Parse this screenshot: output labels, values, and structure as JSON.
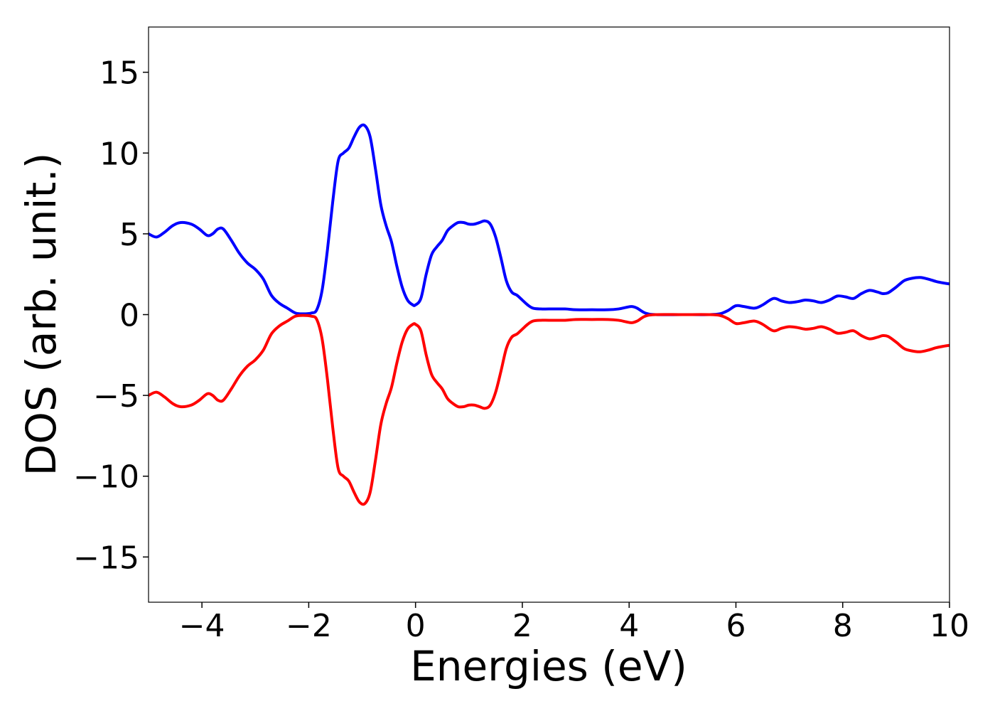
{
  "chart_data": {
    "type": "line",
    "title": "",
    "xlabel": "Energies (eV)",
    "ylabel": "DOS (arb. unit.)",
    "xlim": [
      -5,
      10
    ],
    "ylim": [
      -17.8,
      17.8
    ],
    "x_ticks": [
      -4,
      -2,
      0,
      2,
      4,
      6,
      8,
      10
    ],
    "y_ticks": [
      -15,
      -10,
      -5,
      0,
      5,
      10,
      15
    ],
    "x_tick_labels": [
      "−4",
      "−2",
      "0",
      "2",
      "4",
      "6",
      "8",
      "10"
    ],
    "y_tick_labels": [
      "−15",
      "−10",
      "−5",
      "0",
      "5",
      "10",
      "15"
    ],
    "grid": false,
    "legend": "none",
    "series": [
      {
        "color": "#0000ff",
        "x": [
          -5.0,
          -4.85,
          -4.7,
          -4.55,
          -4.4,
          -4.2,
          -4.05,
          -3.9,
          -3.8,
          -3.7,
          -3.6,
          -3.45,
          -3.3,
          -3.15,
          -3.0,
          -2.85,
          -2.7,
          -2.55,
          -2.4,
          -2.25,
          -2.1,
          -1.95,
          -1.85,
          -1.75,
          -1.65,
          -1.55,
          -1.45,
          -1.35,
          -1.25,
          -1.15,
          -1.05,
          -0.95,
          -0.85,
          -0.75,
          -0.65,
          -0.55,
          -0.45,
          -0.35,
          -0.25,
          -0.15,
          -0.05,
          0.0,
          0.1,
          0.2,
          0.3,
          0.4,
          0.5,
          0.6,
          0.7,
          0.8,
          0.9,
          1.0,
          1.1,
          1.2,
          1.3,
          1.4,
          1.5,
          1.6,
          1.7,
          1.8,
          1.9,
          2.0,
          2.1,
          2.2,
          2.35,
          2.5,
          2.8,
          3.0,
          3.3,
          3.6,
          3.8,
          3.95,
          4.05,
          4.15,
          4.3,
          4.5,
          5.0,
          5.5,
          5.7,
          5.85,
          6.0,
          6.15,
          6.35,
          6.5,
          6.7,
          6.85,
          7.0,
          7.15,
          7.3,
          7.45,
          7.6,
          7.75,
          7.9,
          8.05,
          8.2,
          8.35,
          8.5,
          8.65,
          8.75,
          8.85,
          9.0,
          9.15,
          9.3,
          9.45,
          9.6,
          9.75,
          9.9,
          10.0
        ],
        "y": [
          5.0,
          4.8,
          5.1,
          5.5,
          5.7,
          5.6,
          5.3,
          4.9,
          5.0,
          5.3,
          5.3,
          4.6,
          3.8,
          3.2,
          2.8,
          2.2,
          1.2,
          0.7,
          0.4,
          0.1,
          0.05,
          0.1,
          0.3,
          1.5,
          4.0,
          7.0,
          9.5,
          10.0,
          10.3,
          11.0,
          11.6,
          11.7,
          11.0,
          9.0,
          6.8,
          5.5,
          4.5,
          3.0,
          1.7,
          0.9,
          0.6,
          0.6,
          1.0,
          2.5,
          3.7,
          4.2,
          4.6,
          5.2,
          5.5,
          5.7,
          5.7,
          5.6,
          5.6,
          5.7,
          5.8,
          5.6,
          4.8,
          3.5,
          2.1,
          1.4,
          1.2,
          0.9,
          0.6,
          0.4,
          0.35,
          0.35,
          0.35,
          0.3,
          0.3,
          0.3,
          0.35,
          0.45,
          0.5,
          0.4,
          0.1,
          0.0,
          0.0,
          0.0,
          0.05,
          0.25,
          0.55,
          0.5,
          0.4,
          0.6,
          1.0,
          0.85,
          0.75,
          0.8,
          0.9,
          0.85,
          0.75,
          0.9,
          1.15,
          1.1,
          1.0,
          1.3,
          1.5,
          1.4,
          1.3,
          1.35,
          1.7,
          2.1,
          2.25,
          2.3,
          2.2,
          2.05,
          1.95,
          1.9
        ]
      },
      {
        "color": "#ff0000",
        "x": [
          -5.0,
          -4.85,
          -4.7,
          -4.55,
          -4.4,
          -4.2,
          -4.05,
          -3.9,
          -3.8,
          -3.7,
          -3.6,
          -3.45,
          -3.3,
          -3.15,
          -3.0,
          -2.85,
          -2.7,
          -2.55,
          -2.4,
          -2.25,
          -2.1,
          -1.95,
          -1.85,
          -1.75,
          -1.65,
          -1.55,
          -1.45,
          -1.35,
          -1.25,
          -1.15,
          -1.05,
          -0.95,
          -0.85,
          -0.75,
          -0.65,
          -0.55,
          -0.45,
          -0.35,
          -0.25,
          -0.15,
          -0.05,
          0.0,
          0.1,
          0.2,
          0.3,
          0.4,
          0.5,
          0.6,
          0.7,
          0.8,
          0.9,
          1.0,
          1.1,
          1.2,
          1.3,
          1.4,
          1.5,
          1.6,
          1.7,
          1.8,
          1.9,
          2.0,
          2.1,
          2.2,
          2.35,
          2.5,
          2.8,
          3.0,
          3.3,
          3.6,
          3.8,
          3.95,
          4.05,
          4.15,
          4.3,
          4.5,
          5.0,
          5.5,
          5.7,
          5.85,
          6.0,
          6.15,
          6.35,
          6.5,
          6.7,
          6.85,
          7.0,
          7.15,
          7.3,
          7.45,
          7.6,
          7.75,
          7.9,
          8.05,
          8.2,
          8.35,
          8.5,
          8.65,
          8.75,
          8.85,
          9.0,
          9.15,
          9.3,
          9.45,
          9.6,
          9.75,
          9.9,
          10.0
        ],
        "y": [
          -5.0,
          -4.8,
          -5.1,
          -5.5,
          -5.7,
          -5.6,
          -5.3,
          -4.9,
          -5.0,
          -5.3,
          -5.3,
          -4.6,
          -3.8,
          -3.2,
          -2.8,
          -2.2,
          -1.2,
          -0.7,
          -0.4,
          -0.1,
          -0.05,
          -0.1,
          -0.3,
          -1.5,
          -4.0,
          -7.0,
          -9.5,
          -10.0,
          -10.3,
          -11.0,
          -11.6,
          -11.7,
          -11.0,
          -9.0,
          -6.8,
          -5.5,
          -4.5,
          -3.0,
          -1.7,
          -0.9,
          -0.6,
          -0.6,
          -1.0,
          -2.5,
          -3.7,
          -4.2,
          -4.6,
          -5.2,
          -5.5,
          -5.7,
          -5.7,
          -5.6,
          -5.6,
          -5.7,
          -5.8,
          -5.6,
          -4.8,
          -3.5,
          -2.1,
          -1.4,
          -1.2,
          -0.9,
          -0.6,
          -0.4,
          -0.35,
          -0.35,
          -0.35,
          -0.3,
          -0.3,
          -0.3,
          -0.35,
          -0.45,
          -0.5,
          -0.4,
          -0.1,
          0.0,
          0.0,
          0.0,
          -0.05,
          -0.25,
          -0.55,
          -0.5,
          -0.4,
          -0.6,
          -1.0,
          -0.85,
          -0.75,
          -0.8,
          -0.9,
          -0.85,
          -0.75,
          -0.9,
          -1.15,
          -1.1,
          -1.0,
          -1.3,
          -1.5,
          -1.4,
          -1.3,
          -1.35,
          -1.7,
          -2.1,
          -2.25,
          -2.3,
          -2.2,
          -2.05,
          -1.95,
          -1.9
        ]
      }
    ]
  }
}
